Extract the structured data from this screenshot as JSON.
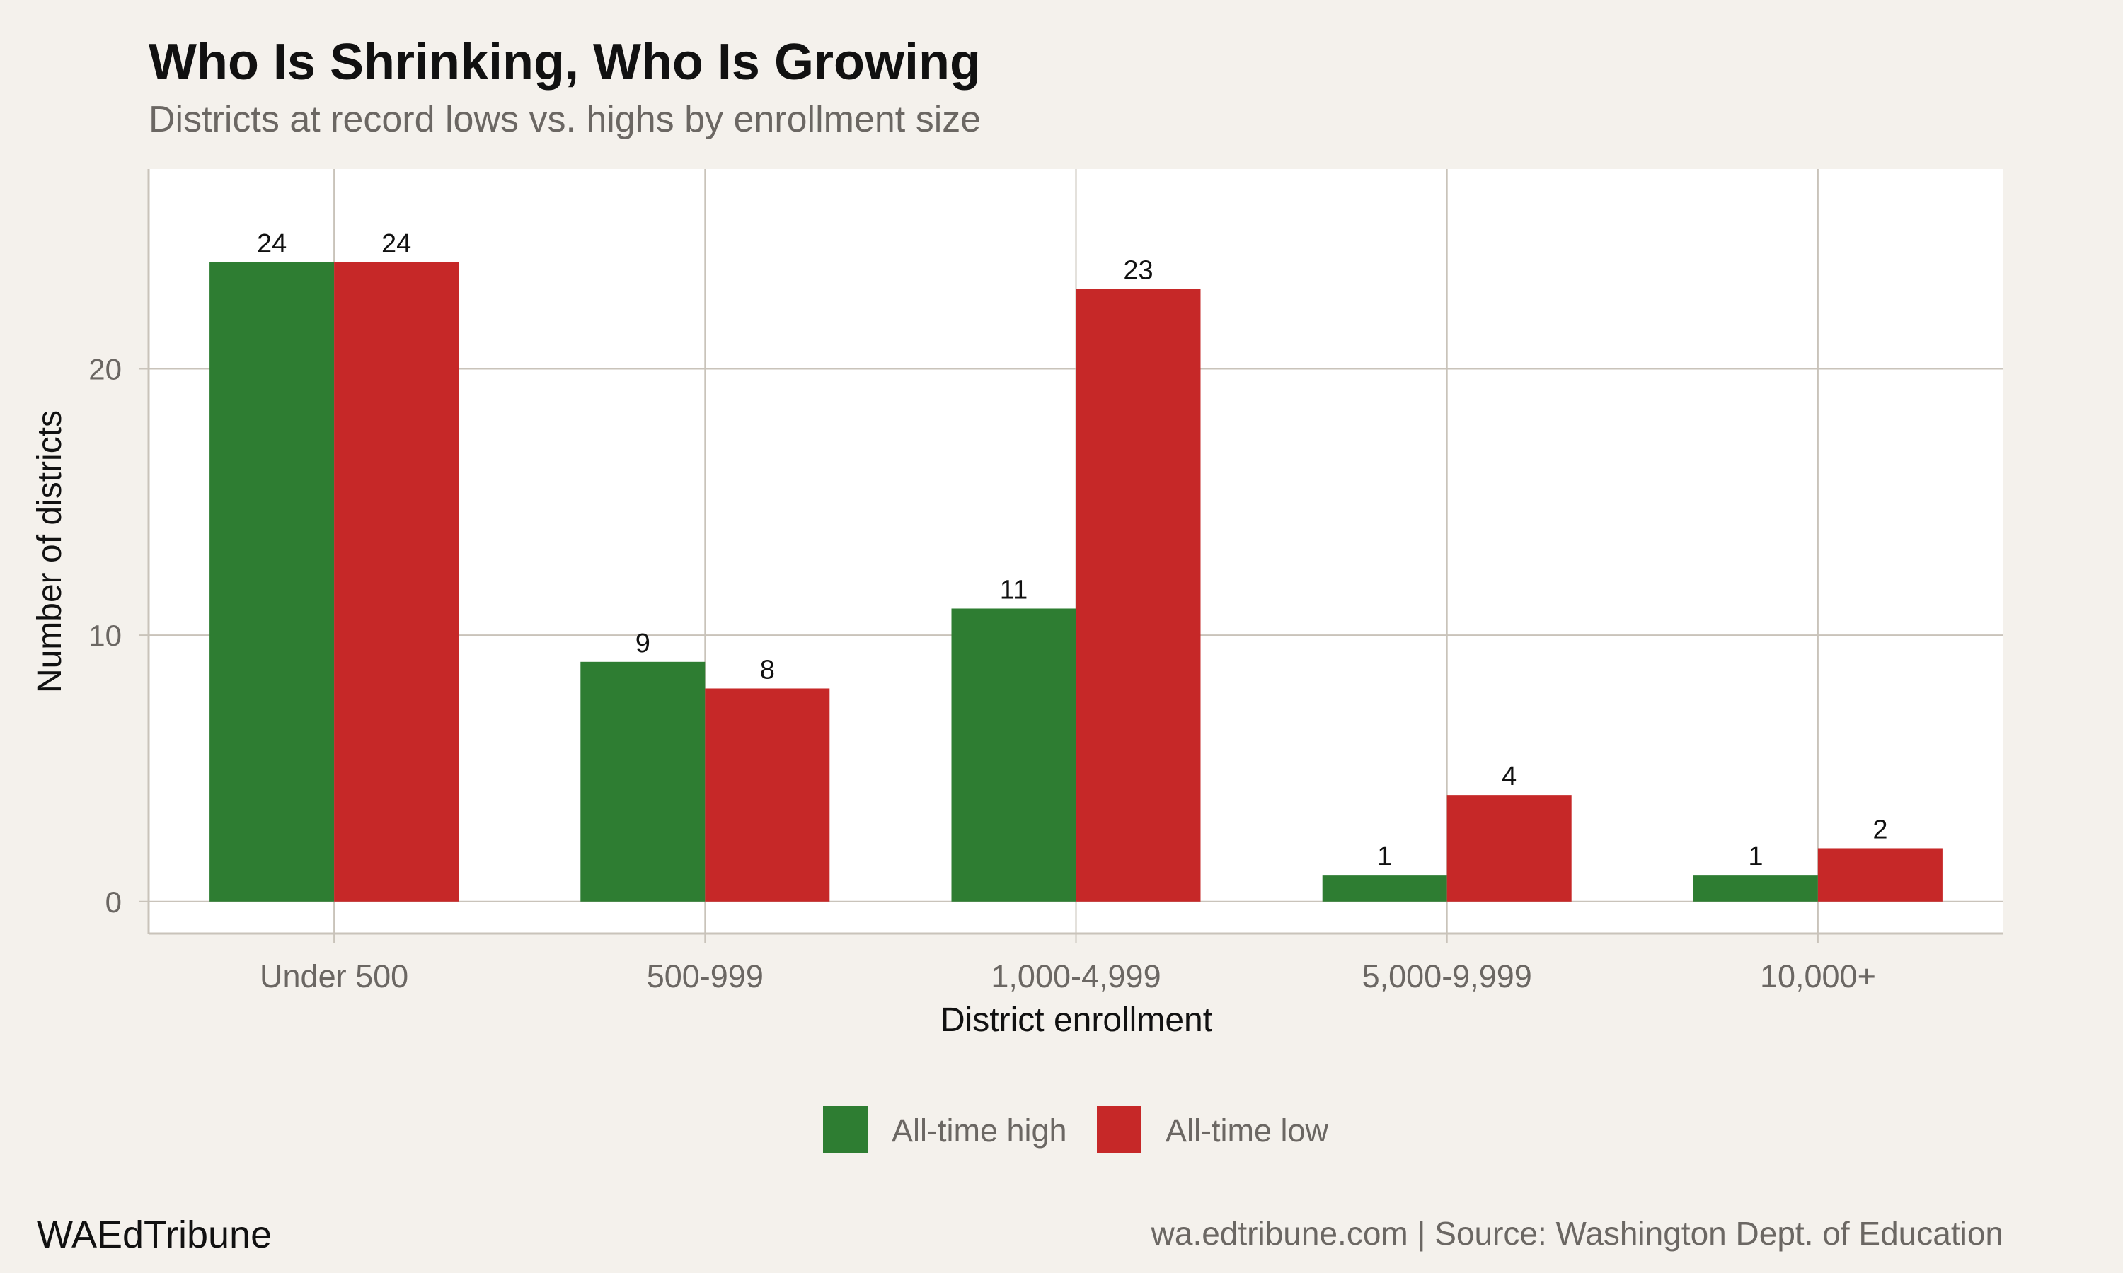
{
  "chart_data": {
    "type": "bar",
    "title": "Who Is Shrinking, Who Is Growing",
    "subtitle": "Districts at record lows vs. highs by enrollment size",
    "xlabel": "District enrollment",
    "ylabel": "Number of districts",
    "categories": [
      "Under 500",
      "500-999",
      "1,000-4,999",
      "5,000-9,999",
      "10,000+"
    ],
    "series": [
      {
        "name": "All-time high",
        "color": "#2e7d32",
        "values": [
          24,
          9,
          11,
          1,
          1
        ]
      },
      {
        "name": "All-time low",
        "color": "#c62828",
        "values": [
          24,
          8,
          23,
          4,
          2
        ]
      }
    ],
    "ylim": [
      -1.2,
      27.5
    ],
    "yticks": [
      0,
      10,
      20
    ],
    "grid": true,
    "legend_position": "bottom"
  },
  "footer": {
    "brand": "WAEdTribune",
    "source": "wa.edtribune.com | Source: Washington Dept. of Education"
  }
}
